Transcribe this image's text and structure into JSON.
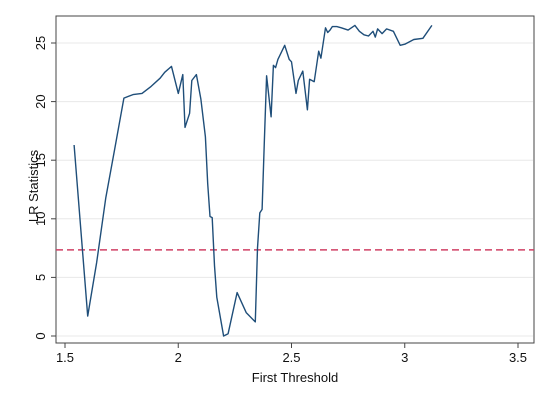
{
  "chart_data": {
    "type": "line",
    "title": "",
    "xlabel": "First Threshold",
    "ylabel": "LR Statistics",
    "xlim": [
      1.5,
      3.5
    ],
    "ylim": [
      0,
      27
    ],
    "xticks": [
      1.5,
      2,
      2.5,
      3,
      3.5
    ],
    "xtick_labels": [
      "1.5",
      "2",
      "2.5",
      "3",
      "3.5"
    ],
    "yticks": [
      0,
      5,
      10,
      15,
      20,
      25
    ],
    "ytick_labels": [
      "0",
      "5",
      "10",
      "15",
      "20",
      "25"
    ],
    "grid": "horizontal",
    "legend": "none",
    "colors": {
      "series": "#1f4e79",
      "reference": "#d14066",
      "frame": "#444444",
      "grid": "#e8e8e8",
      "plot_bg": "#ffffff",
      "outer_bg": "#ffffff"
    },
    "series": [
      {
        "x": [
          1.54,
          1.6,
          1.64,
          1.68,
          1.72,
          1.76,
          1.8,
          1.84,
          1.88,
          1.92,
          1.94,
          1.97,
          2.0,
          2.02,
          2.03,
          2.05,
          2.06,
          2.08,
          2.1,
          2.12,
          2.13,
          2.14,
          2.15,
          2.16,
          2.17,
          2.2,
          2.22,
          2.26,
          2.3,
          2.34,
          2.35,
          2.36,
          2.37,
          2.38,
          2.39,
          2.41,
          2.42,
          2.43,
          2.44,
          2.45,
          2.47,
          2.49,
          2.5,
          2.52,
          2.53,
          2.55,
          2.57,
          2.58,
          2.6,
          2.62,
          2.63,
          2.65,
          2.66,
          2.67,
          2.68,
          2.7,
          2.72,
          2.75,
          2.78,
          2.8,
          2.82,
          2.84,
          2.86,
          2.87,
          2.88,
          2.9,
          2.92,
          2.95,
          2.98,
          3.0,
          3.04,
          3.08,
          3.12
        ],
        "y": [
          16.3,
          1.7,
          6.3,
          11.8,
          16.0,
          20.3,
          20.6,
          20.7,
          21.3,
          22.0,
          22.5,
          23.0,
          20.7,
          22.3,
          17.8,
          19.0,
          21.8,
          22.3,
          20.2,
          17.0,
          13.0,
          10.2,
          10.1,
          6.0,
          3.3,
          0.0,
          0.2,
          3.7,
          2.0,
          1.2,
          7.5,
          10.5,
          10.8,
          16.5,
          22.2,
          18.7,
          23.1,
          22.9,
          23.6,
          24.0,
          24.8,
          23.6,
          23.4,
          20.7,
          21.8,
          22.6,
          19.3,
          21.9,
          21.7,
          24.3,
          23.7,
          26.3,
          25.9,
          26.1,
          26.4,
          26.4,
          26.3,
          26.1,
          26.5,
          26.0,
          25.7,
          25.6,
          26.0,
          25.5,
          26.2,
          25.8,
          26.2,
          26.0,
          24.8,
          24.9,
          25.3,
          25.4,
          26.5
        ]
      }
    ],
    "reference_line": {
      "y": 7.35
    }
  }
}
